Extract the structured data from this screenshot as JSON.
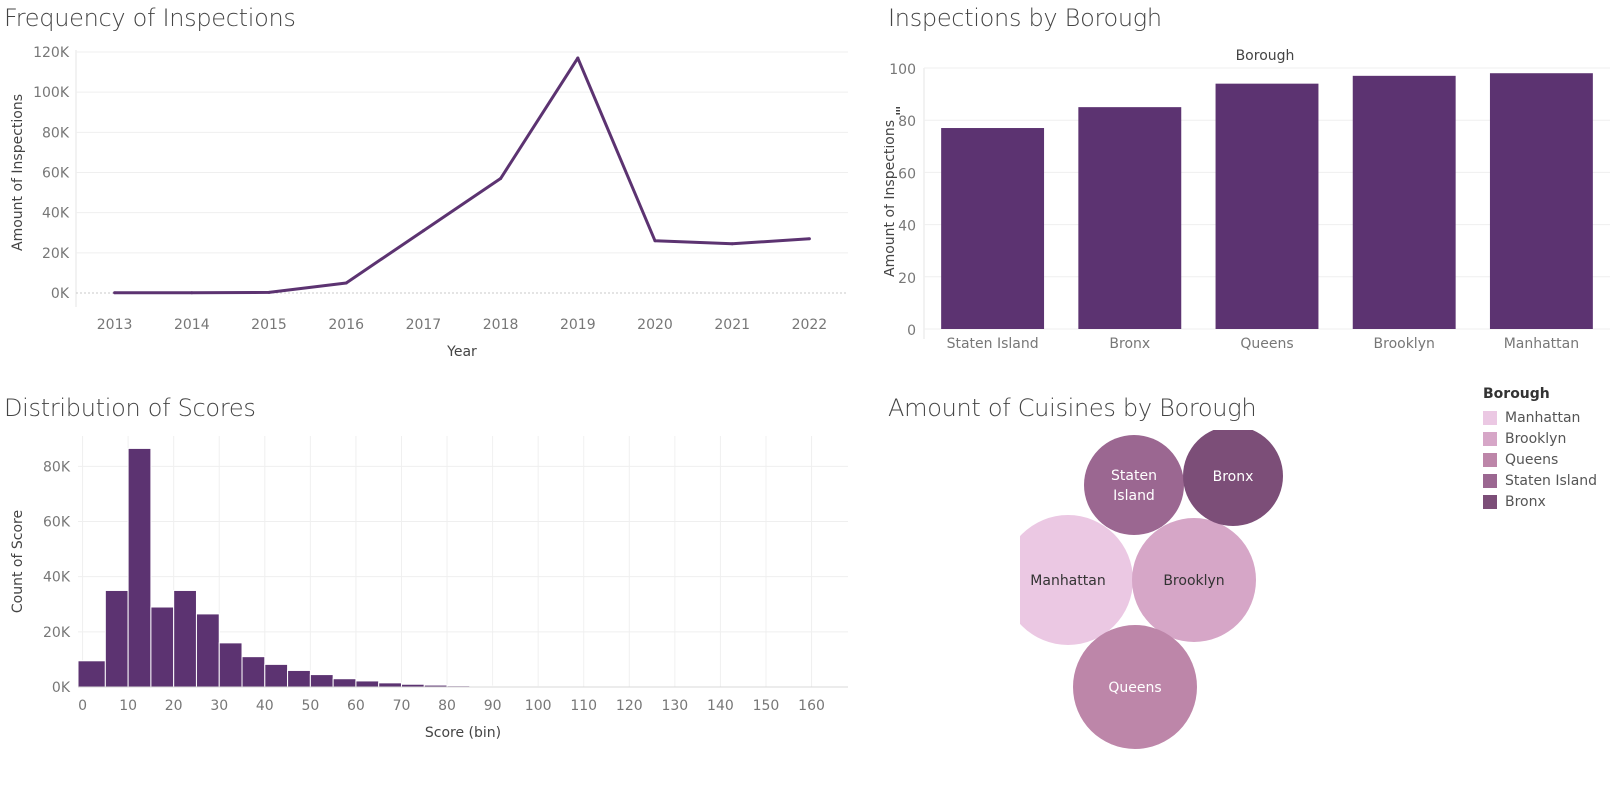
{
  "panels": {
    "frequency": {
      "title": "Frequency of Inspections"
    },
    "borough": {
      "title": "Inspections by Borough"
    },
    "scores": {
      "title": "Distribution of Scores"
    },
    "cuisines": {
      "title": "Amount of Cuisines by Borough"
    }
  },
  "legend": {
    "title": "Borough",
    "items": [
      {
        "label": "Manhattan",
        "color": "#ebc8e3"
      },
      {
        "label": "Brooklyn",
        "color": "#d6a6c7"
      },
      {
        "label": "Queens",
        "color": "#bd86a9"
      },
      {
        "label": "Staten Island",
        "color": "#9b6791"
      },
      {
        "label": "Bronx",
        "color": "#7c4e78"
      }
    ]
  },
  "chart_data": [
    {
      "id": "frequency",
      "type": "line",
      "title": "Frequency of Inspections",
      "xlabel": "Year",
      "ylabel": "Amount of Inspections",
      "x": [
        "2013",
        "2014",
        "2015",
        "2016",
        "2017",
        "2018",
        "2019",
        "2020",
        "2021",
        "2022"
      ],
      "values": [
        100,
        150,
        300,
        5000,
        31000,
        57000,
        117000,
        26000,
        24500,
        27000
      ],
      "ylim": [
        0,
        120000
      ],
      "yticks": [
        0,
        20000,
        40000,
        60000,
        80000,
        100000,
        120000
      ],
      "ytick_labels": [
        "0K",
        "20K",
        "40K",
        "60K",
        "80K",
        "100K",
        "120K"
      ],
      "color": "#5c3371",
      "grid": true
    },
    {
      "id": "borough",
      "type": "bar",
      "title": "Inspections by Borough",
      "header": "Borough",
      "ylabel": "Amount of Inspections",
      "categories": [
        "Staten Island",
        "Bronx",
        "Queens",
        "Brooklyn",
        "Manhattan"
      ],
      "values": [
        77,
        85,
        94,
        97,
        98
      ],
      "ylim": [
        0,
        100
      ],
      "yticks": [
        0,
        20,
        40,
        60,
        80,
        100
      ],
      "color": "#5c3371",
      "grid": true
    },
    {
      "id": "scores",
      "type": "bar",
      "title": "Distribution of Scores",
      "xlabel": "Score (bin)",
      "ylabel": "Count of Score",
      "bin_width": 5,
      "bin_starts": [
        0,
        5,
        10,
        15,
        20,
        25,
        30,
        35,
        40,
        45,
        50,
        55,
        60,
        65,
        70,
        75,
        80,
        85,
        90,
        95,
        100
      ],
      "values": [
        9500,
        35000,
        86500,
        29000,
        35000,
        26500,
        16000,
        11000,
        8200,
        6000,
        4500,
        3000,
        2200,
        1500,
        1000,
        700,
        450,
        320,
        220,
        160,
        110
      ],
      "xlim": [
        -1,
        168
      ],
      "xticks": [
        0,
        10,
        20,
        30,
        40,
        50,
        60,
        70,
        80,
        90,
        100,
        110,
        120,
        130,
        140,
        150,
        160
      ],
      "ylim": [
        0,
        91000
      ],
      "yticks": [
        0,
        20000,
        40000,
        60000,
        80000
      ],
      "ytick_labels": [
        "0K",
        "20K",
        "40K",
        "60K",
        "80K"
      ],
      "color": "#5c3371",
      "grid": true
    },
    {
      "id": "cuisines",
      "type": "bubble",
      "title": "Amount of Cuisines by Borough",
      "legend_title": "Borough",
      "items": [
        {
          "label": "Manhattan",
          "color": "#ebc8e3",
          "text_color": "#333333"
        },
        {
          "label": "Brooklyn",
          "color": "#d6a6c7",
          "text_color": "#333333"
        },
        {
          "label": "Queens",
          "color": "#bd86a9",
          "text_color": "#ffffff"
        },
        {
          "label": "Staten Island",
          "color": "#9b6791",
          "text_color": "#ffffff"
        },
        {
          "label": "Bronx",
          "color": "#7c4e78",
          "text_color": "#ffffff"
        }
      ]
    }
  ]
}
